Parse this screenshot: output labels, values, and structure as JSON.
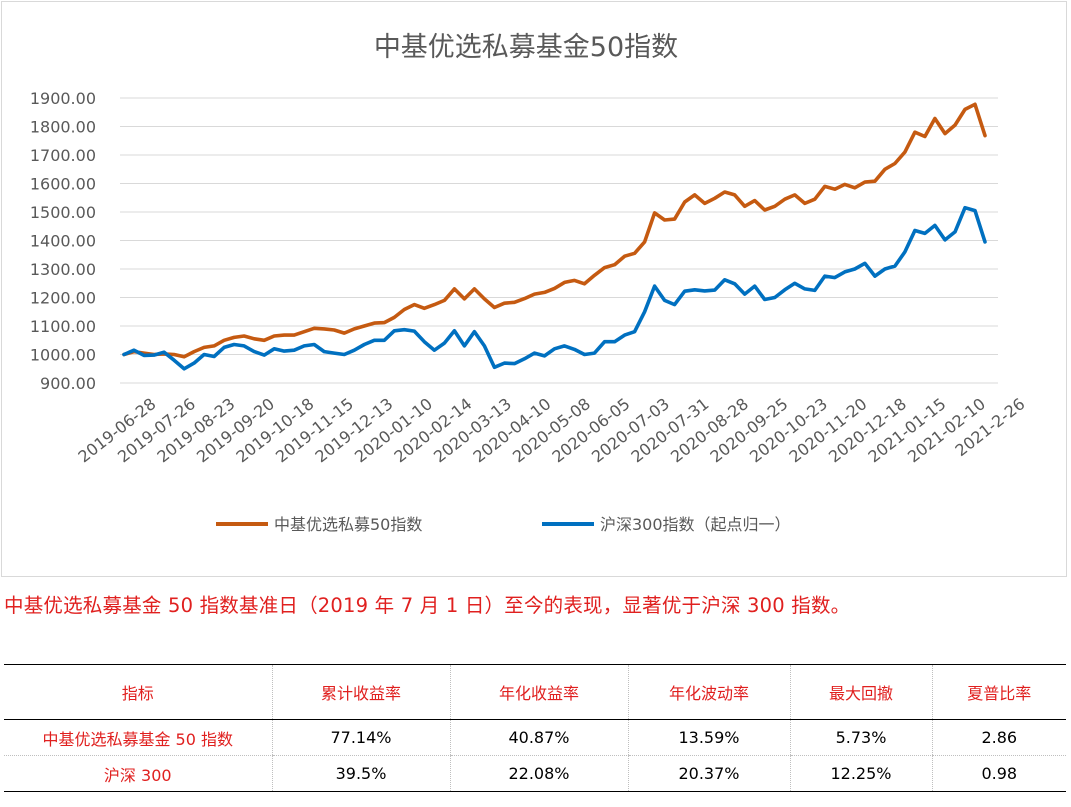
{
  "chart_data": {
    "type": "line",
    "title": "中基优选私募基金50指数",
    "xlabel": "",
    "ylabel": "",
    "ylim": [
      900,
      1900
    ],
    "y_ticks": [
      "1900.00",
      "1800.00",
      "1700.00",
      "1600.00",
      "1500.00",
      "1400.00",
      "1300.00",
      "1200.00",
      "1100.00",
      "1000.00",
      "900.00"
    ],
    "x_tick_labels": [
      "2019-06-28",
      "2019-07-26",
      "2019-08-23",
      "2019-09-20",
      "2019-10-18",
      "2019-11-15",
      "2019-12-13",
      "2020-01-10",
      "2020-02-14",
      "2020-03-13",
      "2020-04-10",
      "2020-05-08",
      "2020-06-05",
      "2020-07-03",
      "2020-07-31",
      "2020-08-28",
      "2020-09-25",
      "2020-10-23",
      "2020-11-20",
      "2020-12-18",
      "2021-01-15",
      "2021-02-10",
      "2021-2-26"
    ],
    "grid": true,
    "legend_position": "bottom",
    "series": [
      {
        "name": "中基优选私募50指数",
        "color": "#c55a11",
        "values": [
          1000,
          1010,
          1005,
          1000,
          1002,
          1000,
          992,
          1010,
          1025,
          1030,
          1050,
          1060,
          1065,
          1055,
          1050,
          1065,
          1068,
          1068,
          1080,
          1092,
          1090,
          1086,
          1075,
          1090,
          1100,
          1110,
          1112,
          1130,
          1158,
          1175,
          1162,
          1175,
          1190,
          1230,
          1195,
          1230,
          1195,
          1165,
          1180,
          1183,
          1196,
          1212,
          1218,
          1232,
          1253,
          1260,
          1248,
          1278,
          1305,
          1315,
          1345,
          1355,
          1395,
          1497,
          1472,
          1475,
          1535,
          1560,
          1530,
          1548,
          1570,
          1560,
          1520,
          1540,
          1507,
          1520,
          1545,
          1560,
          1530,
          1545,
          1590,
          1580,
          1597,
          1585,
          1605,
          1608,
          1650,
          1670,
          1710,
          1780,
          1765,
          1828,
          1775,
          1805,
          1860,
          1878,
          1768
        ]
      },
      {
        "name": "沪深300指数（起点归一）",
        "color": "#0070c0",
        "values": [
          1000,
          1015,
          997,
          998,
          1008,
          980,
          950,
          970,
          1000,
          993,
          1025,
          1035,
          1030,
          1010,
          998,
          1020,
          1012,
          1015,
          1030,
          1035,
          1010,
          1005,
          1000,
          1015,
          1035,
          1050,
          1050,
          1083,
          1087,
          1082,
          1045,
          1015,
          1040,
          1083,
          1030,
          1080,
          1030,
          955,
          970,
          968,
          985,
          1005,
          995,
          1020,
          1030,
          1018,
          1000,
          1005,
          1045,
          1045,
          1068,
          1080,
          1150,
          1240,
          1190,
          1175,
          1222,
          1227,
          1223,
          1226,
          1262,
          1248,
          1212,
          1240,
          1193,
          1200,
          1227,
          1250,
          1230,
          1225,
          1275,
          1270,
          1290,
          1300,
          1320,
          1275,
          1300,
          1310,
          1360,
          1435,
          1425,
          1453,
          1402,
          1430,
          1515,
          1505,
          1395
        ]
      }
    ]
  },
  "caption": "中基优选私募基金 50 指数基准日（2019 年 7 月 1 日）至今的表现，显著优于沪深 300 指数。",
  "table": {
    "headers": [
      "指标",
      "累计收益率",
      "年化收益率",
      "年化波动率",
      "最大回撤",
      "夏普比率"
    ],
    "rows": [
      {
        "name": "中基优选私募基金 50 指数",
        "values": [
          "77.14%",
          "40.87%",
          "13.59%",
          "5.73%",
          "2.86"
        ]
      },
      {
        "name": "沪深 300",
        "values": [
          "39.5%",
          "22.08%",
          "20.37%",
          "12.25%",
          "0.98"
        ]
      }
    ]
  }
}
